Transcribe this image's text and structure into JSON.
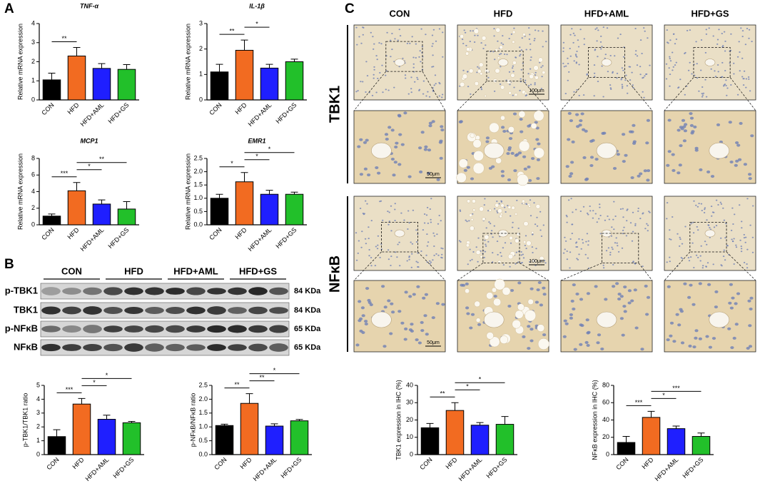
{
  "panel_labels": [
    "A",
    "B",
    "C"
  ],
  "blot": {
    "groups": [
      "CON",
      "HFD",
      "HFD+AML",
      "HFD+GS"
    ],
    "rows": [
      {
        "name": "p-TBK1",
        "size": "84 KDa"
      },
      {
        "name": "TBK1",
        "size": "84 KDa"
      },
      {
        "name": "p-NFκB",
        "size": "65 KDa"
      },
      {
        "name": "NFκB",
        "size": "65 KDa"
      }
    ]
  },
  "ihc": {
    "columns": [
      "CON",
      "HFD",
      "HFD+AML",
      "HFD+GS"
    ],
    "rows": [
      "TBK1",
      "NFκB"
    ],
    "scale_bars": [
      "100μm",
      "50μm"
    ]
  },
  "chart_data": [
    {
      "type": "bar",
      "title": "TNF-α",
      "ylabel": "Relative mRNA expression",
      "categories": [
        "CON",
        "HFD",
        "HFD+AML",
        "HFD+GS"
      ],
      "values": [
        1.05,
        2.3,
        1.65,
        1.6
      ],
      "errors": [
        0.35,
        0.45,
        0.25,
        0.25
      ],
      "colors": [
        "#000000",
        "#f26b21",
        "#1f1fff",
        "#22c02a"
      ],
      "ylim": [
        0,
        4
      ],
      "yticks": [
        0,
        1,
        2,
        3,
        4
      ],
      "comparisons": [
        {
          "groups": [
            0,
            1
          ],
          "label": "**"
        }
      ]
    },
    {
      "type": "bar",
      "title": "IL-1β",
      "ylabel": "Relative mRNA expression",
      "categories": [
        "CON",
        "HFD",
        "HFD+AML",
        "HFD+GS"
      ],
      "values": [
        1.1,
        1.95,
        1.25,
        1.5
      ],
      "errors": [
        0.3,
        0.4,
        0.15,
        0.1
      ],
      "colors": [
        "#000000",
        "#f26b21",
        "#1f1fff",
        "#22c02a"
      ],
      "ylim": [
        0,
        3
      ],
      "yticks": [
        0,
        1,
        2,
        3
      ],
      "comparisons": [
        {
          "groups": [
            0,
            1
          ],
          "label": "**"
        },
        {
          "groups": [
            1,
            2
          ],
          "label": "*"
        }
      ]
    },
    {
      "type": "bar",
      "title": "MCP1",
      "ylabel": "Relative mRNA expression",
      "categories": [
        "CON",
        "HFD",
        "HFD+AML",
        "HFD+GS"
      ],
      "values": [
        1.05,
        4.1,
        2.5,
        1.9
      ],
      "errors": [
        0.25,
        1.0,
        0.5,
        0.9
      ],
      "colors": [
        "#000000",
        "#f26b21",
        "#1f1fff",
        "#22c02a"
      ],
      "ylim": [
        0,
        8
      ],
      "yticks": [
        0,
        2,
        4,
        6,
        8
      ],
      "comparisons": [
        {
          "groups": [
            0,
            1
          ],
          "label": "***"
        },
        {
          "groups": [
            1,
            2
          ],
          "label": "*"
        },
        {
          "groups": [
            1,
            3
          ],
          "label": "**"
        }
      ]
    },
    {
      "type": "bar",
      "title": "EMR1",
      "ylabel": "Relative mRNA expression",
      "categories": [
        "CON",
        "HFD",
        "HFD+AML",
        "HFD+GS"
      ],
      "values": [
        1.0,
        1.62,
        1.15,
        1.15
      ],
      "errors": [
        0.15,
        0.35,
        0.15,
        0.08
      ],
      "colors": [
        "#000000",
        "#f26b21",
        "#1f1fff",
        "#22c02a"
      ],
      "ylim": [
        0,
        2.5
      ],
      "yticks": [
        {
          "value": 0,
          "label": "0.0"
        },
        {
          "value": 0.5,
          "label": "0.5"
        },
        {
          "value": 1,
          "label": "1.0"
        },
        {
          "value": 1.5,
          "label": "1.5"
        },
        {
          "value": 2,
          "label": "2.0"
        },
        {
          "value": 2.5,
          "label": "2.5"
        }
      ],
      "comparisons": [
        {
          "groups": [
            0,
            1
          ],
          "label": "*"
        },
        {
          "groups": [
            1,
            2
          ],
          "label": "*"
        },
        {
          "groups": [
            1,
            3
          ],
          "label": "*"
        }
      ]
    },
    {
      "type": "bar",
      "ylabel": "p-TBK1/TBK1 ratio",
      "categories": [
        "CON",
        "HFD",
        "HFD+AML",
        "HFD+GS"
      ],
      "values": [
        1.3,
        3.65,
        2.55,
        2.3
      ],
      "errors": [
        0.5,
        0.4,
        0.3,
        0.1
      ],
      "colors": [
        "#000000",
        "#f26b21",
        "#1f1fff",
        "#22c02a"
      ],
      "ylim": [
        0,
        5
      ],
      "yticks": [
        0,
        1,
        2,
        3,
        4,
        5
      ],
      "comparisons": [
        {
          "groups": [
            0,
            1
          ],
          "label": "***"
        },
        {
          "groups": [
            1,
            2
          ],
          "label": "*"
        },
        {
          "groups": [
            1,
            3
          ],
          "label": "*"
        }
      ]
    },
    {
      "type": "bar",
      "ylabel": "p-NFκB/NFκB ratio",
      "categories": [
        "CON",
        "HFD",
        "HFD+AML",
        "HFD+GS"
      ],
      "values": [
        1.05,
        1.85,
        1.03,
        1.22
      ],
      "errors": [
        0.05,
        0.35,
        0.08,
        0.05
      ],
      "colors": [
        "#000000",
        "#f26b21",
        "#1f1fff",
        "#22c02a"
      ],
      "ylim": [
        0,
        2.5
      ],
      "yticks": [
        {
          "value": 0,
          "label": "0.0"
        },
        {
          "value": 0.5,
          "label": "0.5"
        },
        {
          "value": 1,
          "label": "1.0"
        },
        {
          "value": 1.5,
          "label": "1.5"
        },
        {
          "value": 2,
          "label": "2.0"
        },
        {
          "value": 2.5,
          "label": "2.5"
        }
      ],
      "comparisons": [
        {
          "groups": [
            0,
            1
          ],
          "label": "**"
        },
        {
          "groups": [
            1,
            2
          ],
          "label": "**"
        },
        {
          "groups": [
            1,
            3
          ],
          "label": "*"
        }
      ]
    },
    {
      "type": "bar",
      "ylabel": "TBK1 expression in IHC (%)",
      "categories": [
        "CON",
        "HFD",
        "HFD+AML",
        "HFD+GS"
      ],
      "values": [
        15.5,
        25.5,
        17,
        17.5
      ],
      "errors": [
        2.5,
        4.5,
        1.5,
        4.5
      ],
      "colors": [
        "#000000",
        "#f26b21",
        "#1f1fff",
        "#22c02a"
      ],
      "ylim": [
        0,
        40
      ],
      "yticks": [
        0,
        10,
        20,
        30,
        40
      ],
      "comparisons": [
        {
          "groups": [
            0,
            1
          ],
          "label": "**"
        },
        {
          "groups": [
            1,
            2
          ],
          "label": "*"
        },
        {
          "groups": [
            1,
            3
          ],
          "label": "*"
        }
      ]
    },
    {
      "type": "bar",
      "ylabel": "NFκB expression in IHC (%)",
      "categories": [
        "CON",
        "HFD",
        "HFD+AML",
        "HFD+GS"
      ],
      "values": [
        14,
        43,
        30,
        21
      ],
      "errors": [
        7,
        7,
        3,
        4
      ],
      "colors": [
        "#000000",
        "#f26b21",
        "#1f1fff",
        "#22c02a"
      ],
      "ylim": [
        0,
        80
      ],
      "yticks": [
        0,
        20,
        40,
        60,
        80
      ],
      "comparisons": [
        {
          "groups": [
            0,
            1
          ],
          "label": "***"
        },
        {
          "groups": [
            1,
            2
          ],
          "label": "*"
        },
        {
          "groups": [
            1,
            3
          ],
          "label": "***"
        }
      ]
    }
  ]
}
